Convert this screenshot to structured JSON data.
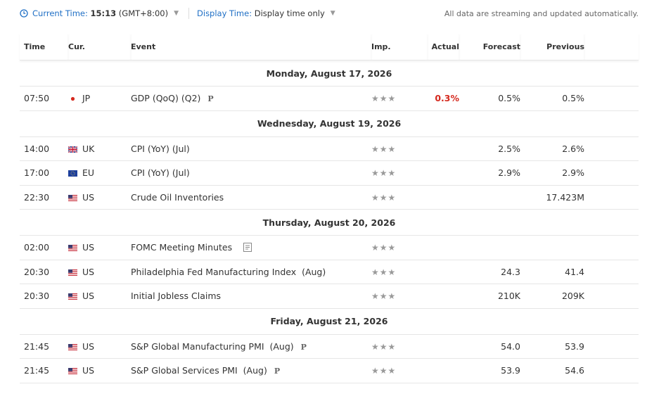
{
  "toolbar": {
    "current_time_label": "Current Time:",
    "current_time": "15:13",
    "timezone": "(GMT+8:00)",
    "display_time_label": "Display Time:",
    "display_time": "Display time only",
    "notice": "All data are streaming and updated automatically."
  },
  "table": {
    "columns": [
      "Time",
      "Cur.",
      "Event",
      "Imp.",
      "Actual",
      "Forecast",
      "Previous"
    ],
    "groups": [
      {
        "date": "Monday, August 17, 2026",
        "rows": [
          {
            "time": "07:50",
            "currency": "JP",
            "event": "GDP (QoQ) (Q2)",
            "badge": "P",
            "actual": "0.3%",
            "forecast": "0.5%",
            "previous": "0.5%"
          }
        ]
      },
      {
        "date": "Wednesday, August 19, 2026",
        "rows": [
          {
            "time": "14:00",
            "currency": "UK",
            "event": "CPI (YoY) (Jul)",
            "forecast": "2.5%",
            "previous": "2.6%"
          },
          {
            "time": "17:00",
            "currency": "EU",
            "event": "CPI (YoY) (Jul)",
            "forecast": "2.9%",
            "previous": "2.9%"
          },
          {
            "time": "22:30",
            "currency": "US",
            "event": "Crude Oil Inventories",
            "previous": "17.423M"
          }
        ]
      },
      {
        "date": "Thursday, August 20, 2026",
        "rows": [
          {
            "time": "02:00",
            "currency": "US",
            "event": "FOMC Meeting Minutes"
          },
          {
            "time": "20:30",
            "currency": "US",
            "event": "Philadelphia Fed Manufacturing Index  (Aug)",
            "forecast": "24.3",
            "previous": "41.4"
          },
          {
            "time": "20:30",
            "currency": "US",
            "event": "Initial Jobless Claims",
            "forecast": "210K",
            "previous": "209K"
          }
        ]
      },
      {
        "date": "Friday, August 21, 2026",
        "rows": [
          {
            "time": "21:45",
            "currency": "US",
            "event": "S&P Global Manufacturing PMI  (Aug)",
            "badge": "P",
            "forecast": "54.0",
            "previous": "53.9"
          },
          {
            "time": "21:45",
            "currency": "US",
            "event": "S&P Global Services PMI  (Aug)",
            "badge": "P",
            "forecast": "53.9",
            "previous": "54.6"
          }
        ]
      }
    ]
  }
}
